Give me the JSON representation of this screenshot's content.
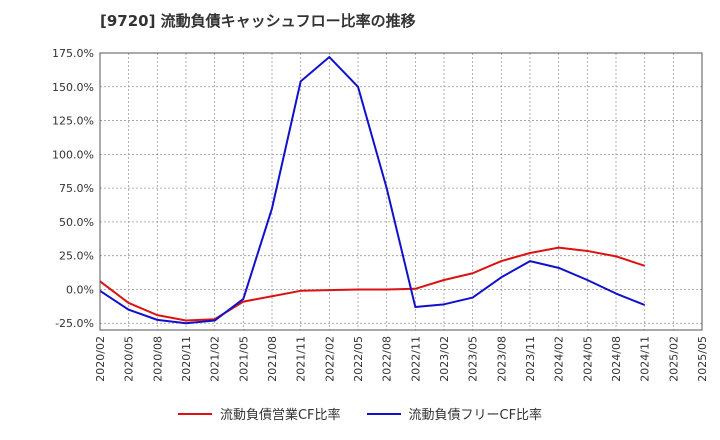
{
  "chart_data": {
    "type": "line",
    "title": "[9720]  流動負債キャッシュフロー比率の推移",
    "x": [
      "2020/02",
      "2020/05",
      "2020/08",
      "2020/11",
      "2021/02",
      "2021/05",
      "2021/08",
      "2021/11",
      "2022/02",
      "2022/05",
      "2022/08",
      "2022/11",
      "2023/02",
      "2023/05",
      "2023/08",
      "2023/11",
      "2024/02",
      "2024/05",
      "2024/08",
      "2024/11",
      "2025/02",
      "2025/05"
    ],
    "ylim": [
      -30,
      175
    ],
    "yticks": [
      -25,
      0,
      25,
      50,
      75,
      100,
      125,
      150,
      175
    ],
    "ytick_labels": [
      "-25.0%",
      "0.0%",
      "25.0%",
      "50.0%",
      "75.0%",
      "100.0%",
      "125.0%",
      "150.0%",
      "175.0%"
    ],
    "grid": true,
    "legend_position": "bottom",
    "series": [
      {
        "name": "流動負債営業CF比率",
        "color": "#dd1111",
        "values": [
          6,
          -10,
          -19,
          -23,
          -22,
          -9,
          -5,
          -1,
          -0.5,
          0,
          0,
          0.5,
          7,
          12,
          21,
          27,
          31,
          28.5,
          24.5,
          17.5,
          null,
          null
        ]
      },
      {
        "name": "流動負債フリーCF比率",
        "color": "#1111cc",
        "values": [
          -1,
          -15,
          -22.5,
          -25,
          -23,
          -7,
          60,
          154,
          172,
          150,
          75,
          -13,
          -11,
          -6,
          9,
          21,
          16,
          7,
          -3,
          -11.5,
          null,
          null
        ]
      }
    ]
  }
}
